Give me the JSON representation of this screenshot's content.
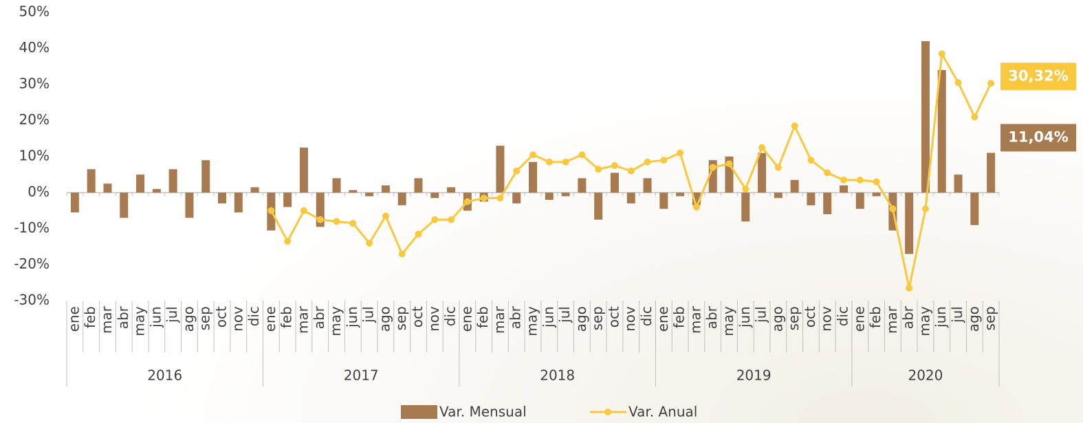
{
  "chart_data": {
    "type": "bar_line",
    "categories": [
      "ene",
      "feb",
      "mar",
      "abr",
      "may",
      "jun",
      "jul",
      "ago",
      "sep",
      "oct",
      "nov",
      "dic",
      "ene",
      "feb",
      "mar",
      "abr",
      "may",
      "jun",
      "jul",
      "ago",
      "sep",
      "oct",
      "nov",
      "dic",
      "ene",
      "feb",
      "mar",
      "abr",
      "may",
      "jun",
      "jul",
      "ago",
      "sep",
      "oct",
      "nov",
      "dic",
      "ene",
      "feb",
      "mar",
      "abr",
      "may",
      "jun",
      "jul",
      "ago",
      "sep",
      "oct",
      "nov",
      "dic",
      "ene",
      "feb",
      "mar",
      "abr",
      "may",
      "jun",
      "jul",
      "ago",
      "sep"
    ],
    "groups": [
      {
        "label": "2016",
        "count": 12
      },
      {
        "label": "2017",
        "count": 12
      },
      {
        "label": "2018",
        "count": 12
      },
      {
        "label": "2019",
        "count": 12
      },
      {
        "label": "2020",
        "count": 9
      }
    ],
    "series": [
      {
        "name": "Var. Mensual",
        "kind": "bar",
        "color": "#a77b4f",
        "values": [
          -5.5,
          6.5,
          2.5,
          -7,
          5,
          1,
          6.5,
          -7,
          9,
          -3,
          -5.5,
          1.5,
          -10.5,
          -4,
          12.5,
          -9.5,
          4,
          0.7,
          -1,
          2,
          -3.5,
          4,
          -1.5,
          1.5,
          -5,
          -2.5,
          13,
          -3,
          8.5,
          -2,
          -1,
          4,
          -7.5,
          5.5,
          -3,
          4,
          -4.5,
          -1,
          -3.5,
          9,
          10,
          -8,
          11,
          -1.5,
          3.5,
          -3.5,
          -6,
          2,
          -4.5,
          -1,
          -10.5,
          -17,
          42,
          34,
          5,
          -9,
          11.04
        ],
        "value_labels": [
          null,
          null,
          null,
          null,
          null,
          null,
          null,
          null,
          null,
          null,
          null,
          null,
          null,
          null,
          null,
          null,
          null,
          null,
          null,
          null,
          null,
          null,
          null,
          null,
          null,
          null,
          null,
          null,
          null,
          null,
          null,
          null,
          null,
          null,
          null,
          null,
          null,
          null,
          null,
          null,
          null,
          null,
          null,
          null,
          null,
          null,
          null,
          null,
          null,
          null,
          null,
          null,
          null,
          null,
          null,
          null,
          "11,04%"
        ]
      },
      {
        "name": "Var. Anual",
        "kind": "line",
        "color": "#f9c83e",
        "values": [
          null,
          null,
          null,
          null,
          null,
          null,
          null,
          null,
          null,
          null,
          null,
          null,
          -5,
          -13.5,
          -5,
          -7.5,
          -8,
          -8.5,
          -14,
          -6.5,
          -17,
          -11.5,
          -7.5,
          -7.5,
          -2.5,
          -1.5,
          -1.5,
          6,
          10.5,
          8.5,
          8.5,
          10.5,
          6.5,
          7.5,
          6,
          8.5,
          9,
          11,
          -4,
          7,
          8,
          1,
          12.5,
          7,
          18.5,
          9,
          5.5,
          3.5,
          3.5,
          3,
          -4.5,
          -26.5,
          -4.5,
          38.5,
          30.5,
          21,
          30.32
        ],
        "value_labels": [
          null,
          null,
          null,
          null,
          null,
          null,
          null,
          null,
          null,
          null,
          null,
          null,
          null,
          null,
          null,
          null,
          null,
          null,
          null,
          null,
          null,
          null,
          null,
          null,
          null,
          null,
          null,
          null,
          null,
          null,
          null,
          null,
          null,
          null,
          null,
          null,
          null,
          null,
          null,
          null,
          null,
          null,
          null,
          null,
          null,
          null,
          null,
          null,
          null,
          null,
          null,
          null,
          null,
          null,
          null,
          null,
          "30,32%"
        ]
      }
    ],
    "ylim": [
      -30,
      50
    ],
    "yticks": [
      {
        "value": -30,
        "label": "-30%"
      },
      {
        "value": -20,
        "label": "-20%"
      },
      {
        "value": -10,
        "label": "-10%"
      },
      {
        "value": 0,
        "label": "0%"
      },
      {
        "value": 10,
        "label": "10%"
      },
      {
        "value": 20,
        "label": "20%"
      },
      {
        "value": 30,
        "label": "30%"
      },
      {
        "value": 40,
        "label": "40%"
      },
      {
        "value": 50,
        "label": "50%"
      }
    ],
    "grid": false,
    "legend": "bottom"
  }
}
